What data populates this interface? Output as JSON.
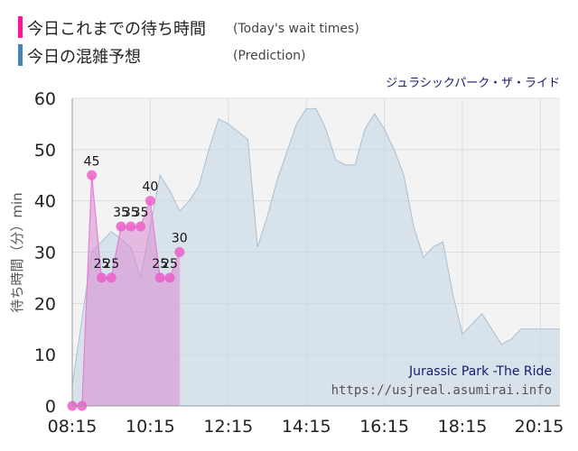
{
  "legend": [
    {
      "label": "今日これまでの待ち時間",
      "en": "(Today's wait times)",
      "color": "#ff1493"
    },
    {
      "label": "今日の混雑予想",
      "en": "(Prediction)",
      "color": "#4682b4"
    }
  ],
  "ride_name_jp": "ジュラシックパーク・ザ・ライド",
  "ride_name_en": "Jurassic Park -The Ride",
  "site_url": "https://usjreal.asumirai.info",
  "chart_data": {
    "type": "area",
    "xlabel": "",
    "ylabel": "待ち時間（分）min",
    "ylim": [
      0,
      60
    ],
    "yticks": [
      0,
      10,
      20,
      30,
      40,
      50,
      60
    ],
    "xlim": [
      "08:15",
      "20:45"
    ],
    "xticks": [
      "08:15",
      "10:15",
      "12:15",
      "14:15",
      "16:15",
      "18:15",
      "20:15"
    ],
    "grid": true,
    "series": [
      {
        "name": "今日の混雑予想",
        "color": "#4682b4",
        "x": [
          "08:15",
          "08:45",
          "09:15",
          "09:45",
          "10:00",
          "10:15",
          "10:30",
          "10:45",
          "11:00",
          "11:15",
          "11:30",
          "11:45",
          "12:00",
          "12:15",
          "12:45",
          "13:00",
          "13:15",
          "13:30",
          "14:00",
          "14:15",
          "14:30",
          "14:45",
          "15:00",
          "15:15",
          "15:30",
          "15:45",
          "16:00",
          "16:15",
          "16:30",
          "16:45",
          "17:00",
          "17:15",
          "17:30",
          "17:45",
          "18:00",
          "18:15",
          "18:30",
          "18:45",
          "19:00",
          "19:15",
          "19:30",
          "19:45",
          "20:00",
          "20:15",
          "20:45"
        ],
        "values": [
          4,
          30,
          34,
          31,
          25,
          35,
          45,
          42,
          38,
          40,
          43,
          50,
          56,
          55,
          52,
          31,
          37,
          44,
          55,
          58,
          58,
          54,
          48,
          47,
          47,
          54,
          57,
          54,
          50,
          45,
          35,
          29,
          31,
          32,
          22,
          14,
          16,
          18,
          15,
          12,
          13,
          15,
          15,
          15,
          15
        ]
      },
      {
        "name": "今日これまでの待ち時間",
        "color": "#ff1493",
        "x": [
          "08:15",
          "08:30",
          "08:45",
          "09:00",
          "09:15",
          "09:30",
          "09:45",
          "10:00",
          "10:15",
          "10:30",
          "10:45",
          "11:00",
          "11:15",
          "11:30",
          "11:45",
          "12:00",
          "12:15",
          "12:30",
          "12:45",
          "13:00",
          "13:15",
          "13:30",
          "13:45"
        ],
        "values": [
          0,
          0,
          45,
          25,
          25,
          35,
          35,
          35,
          40,
          25,
          25,
          30,
          null,
          null,
          null,
          null,
          null,
          null,
          null,
          null,
          null,
          null,
          null
        ],
        "points": [
          {
            "x": "08:15",
            "y": 0
          },
          {
            "x": "08:30",
            "y": 0
          },
          {
            "x": "08:45",
            "y": 45
          },
          {
            "x": "09:00",
            "y": 25
          },
          {
            "x": "09:15",
            "y": 25
          },
          {
            "x": "09:30",
            "y": 35
          },
          {
            "x": "09:45",
            "y": 35
          },
          {
            "x": "10:00",
            "y": 35
          },
          {
            "x": "10:15",
            "y": 40
          },
          {
            "x": "10:30",
            "y": 25
          },
          {
            "x": "10:45",
            "y": 25
          },
          {
            "x": "11:00",
            "y": 30
          }
        ]
      }
    ]
  }
}
